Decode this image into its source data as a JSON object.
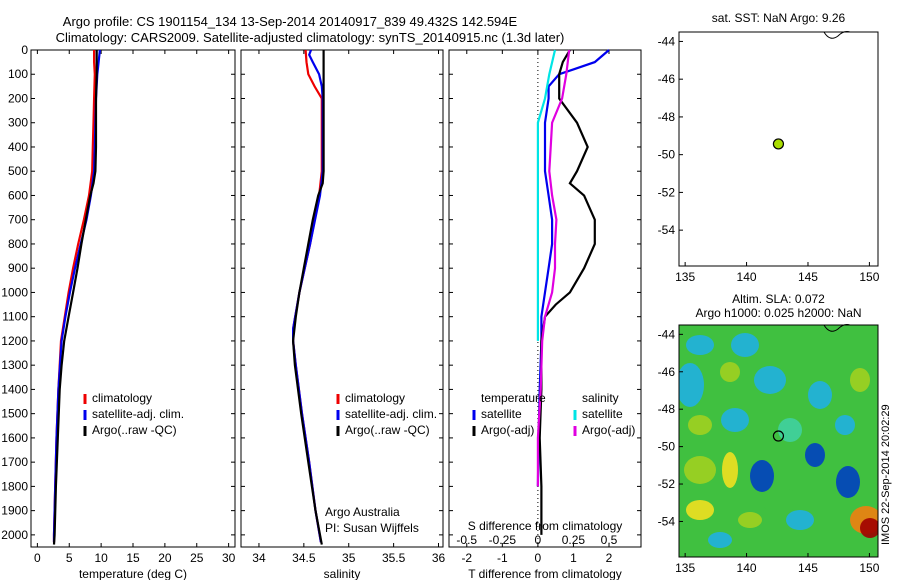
{
  "header": {
    "title_line1": "Argo profile: CS 1901154_134 13-Sep-2014 20140917_839 49.432S 142.594E",
    "title_line2": "Climatology: CARS2009. Satellite-adjusted climatology: synTS_20140915.nc (1.3d later)"
  },
  "colors": {
    "climatology": "#ee0000",
    "satellite": "#0000ee",
    "argo": "#000000",
    "sat_salinity": "#00e5e5",
    "argo_salinity": "#e000e0",
    "marker": "#aadd00"
  },
  "chart_data": [
    {
      "type": "line",
      "xlabel": "temperature (deg C)",
      "xticks": [
        0,
        5,
        10,
        15,
        20,
        25,
        30
      ],
      "xlim": [
        -1,
        31
      ],
      "ylim": [
        0,
        2050
      ],
      "yticks": [
        0,
        100,
        200,
        300,
        400,
        500,
        600,
        700,
        800,
        900,
        1000,
        1100,
        1200,
        1300,
        1400,
        1500,
        1600,
        1700,
        1800,
        1900,
        2000
      ],
      "legend": [
        "climatology",
        "satellite-adj. clim.",
        "Argo(..raw -QC)"
      ],
      "series": [
        {
          "name": "climatology",
          "color": "#ee0000",
          "depth": [
            0,
            50,
            100,
            200,
            300,
            400,
            500,
            600,
            700,
            800,
            900,
            1000,
            1100,
            1200,
            1400,
            1600,
            1800,
            2000,
            2030
          ],
          "values": [
            8.9,
            8.9,
            9.0,
            8.9,
            8.8,
            8.7,
            8.6,
            8.1,
            7.3,
            6.4,
            5.6,
            4.9,
            4.3,
            3.7,
            3.3,
            3.0,
            2.8,
            2.6,
            2.6
          ]
        },
        {
          "name": "satellite-adj. clim.",
          "color": "#0000ee",
          "depth": [
            0,
            50,
            100,
            200,
            300,
            400,
            500,
            600,
            700,
            800,
            900,
            1000,
            1100,
            1200,
            1400,
            1600,
            1800,
            2000,
            2030
          ],
          "values": [
            9.8,
            9.6,
            9.4,
            9.2,
            9.1,
            9.0,
            8.9,
            8.4,
            7.7,
            6.8,
            5.9,
            5.1,
            4.4,
            3.8,
            3.3,
            3.0,
            2.8,
            2.6,
            2.6
          ]
        },
        {
          "name": "Argo(..raw -QC)",
          "color": "#000000",
          "depth": [
            0,
            50,
            100,
            200,
            300,
            400,
            500,
            550,
            600,
            700,
            800,
            900,
            1000,
            1100,
            1200,
            1300,
            1400,
            1600,
            1800,
            2000,
            2040
          ],
          "values": [
            9.3,
            9.3,
            9.3,
            9.2,
            9.2,
            9.2,
            9.1,
            8.8,
            8.3,
            7.6,
            6.9,
            6.3,
            5.6,
            4.9,
            4.2,
            3.8,
            3.5,
            3.2,
            2.9,
            2.7,
            2.6
          ]
        }
      ]
    },
    {
      "type": "line",
      "xlabel": "salinity",
      "xticks": [
        34,
        34.5,
        35,
        35.5,
        36
      ],
      "xlim": [
        33.8,
        36.05
      ],
      "ylim": [
        0,
        2050
      ],
      "legend": [
        "climatology",
        "satellite-adj. clim.",
        "Argo(..raw -QC)"
      ],
      "annotation": [
        "Argo Australia",
        "PI: Susan Wijffels"
      ],
      "series": [
        {
          "name": "climatology",
          "color": "#ee0000",
          "depth": [
            0,
            50,
            100,
            150,
            200,
            300,
            500,
            600,
            800,
            1000,
            1150,
            1200,
            1300,
            1500,
            1700,
            1900,
            2030
          ],
          "values": [
            34.52,
            34.53,
            34.55,
            34.62,
            34.7,
            34.7,
            34.7,
            34.67,
            34.57,
            34.45,
            34.38,
            34.38,
            34.41,
            34.48,
            34.56,
            34.63,
            34.69
          ]
        },
        {
          "name": "satellite-adj. clim.",
          "color": "#0000ee",
          "depth": [
            0,
            20,
            50,
            100,
            150,
            200,
            300,
            500,
            600,
            800,
            1000,
            1150,
            1200,
            1300,
            1500,
            1700,
            1900,
            2030
          ],
          "values": [
            34.58,
            34.56,
            34.6,
            34.67,
            34.7,
            34.71,
            34.71,
            34.71,
            34.68,
            34.57,
            34.45,
            34.38,
            34.38,
            34.41,
            34.48,
            34.56,
            34.63,
            34.69
          ]
        },
        {
          "name": "Argo(..raw -QC)",
          "color": "#000000",
          "depth": [
            0,
            100,
            200,
            300,
            400,
            500,
            550,
            600,
            700,
            800,
            900,
            1000,
            1100,
            1200,
            1300,
            1500,
            1700,
            1900,
            2040
          ],
          "values": [
            34.72,
            34.72,
            34.72,
            34.72,
            34.72,
            34.72,
            34.71,
            34.66,
            34.6,
            34.55,
            34.5,
            34.45,
            34.41,
            34.38,
            34.4,
            34.47,
            34.55,
            34.63,
            34.7
          ]
        }
      ]
    },
    {
      "type": "line",
      "xlabel_top": "S difference from climatology",
      "xlabel": "T difference from climatology",
      "xticks_S": [
        "-0.5",
        "-0.25",
        "0",
        "0.25",
        "0.5"
      ],
      "xticks_T": [
        "-2",
        "-1",
        "0",
        "1",
        "2"
      ],
      "xlim": [
        -2.5,
        2.9
      ],
      "ylim": [
        0,
        2050
      ],
      "legend_temperature": [
        "temperature",
        "satellite",
        "Argo(-adj)"
      ],
      "legend_salinity": [
        "salinity",
        "satellite",
        "Argo(-adj)"
      ],
      "series": [
        {
          "name": "temperature satellite",
          "color": "#0000ee",
          "depth": [
            0,
            50,
            80,
            100,
            150,
            200,
            300,
            400,
            500,
            600,
            700,
            800,
            900,
            1000,
            1100,
            1200,
            1400,
            1600,
            1800
          ],
          "values": [
            2.0,
            1.6,
            1.0,
            0.6,
            0.3,
            0.3,
            0.2,
            0.2,
            0.2,
            0.3,
            0.4,
            0.4,
            0.3,
            0.2,
            0.1,
            0.1,
            0.05,
            0.02,
            0.0
          ]
        },
        {
          "name": "temperature Argo(-adj)",
          "color": "#000000",
          "depth": [
            0,
            50,
            100,
            200,
            300,
            400,
            500,
            550,
            600,
            700,
            800,
            900,
            1000,
            1050,
            1100,
            1200,
            1400,
            1600,
            1800,
            2000
          ],
          "values": [
            0.9,
            0.7,
            0.6,
            0.6,
            1.1,
            1.4,
            1.1,
            0.9,
            1.3,
            1.6,
            1.6,
            1.3,
            0.9,
            0.5,
            0.2,
            0.1,
            0.1,
            0.05,
            0.1,
            0.1
          ]
        },
        {
          "name": "salinity satellite",
          "color": "#00e5e5",
          "depth": [
            0,
            100,
            200,
            300,
            400,
            500,
            600,
            800,
            1000,
            1100,
            1200
          ],
          "values": [
            0.12,
            0.08,
            0.05,
            0.0,
            0.0,
            0.0,
            0.0,
            0.0,
            0.0,
            0.0,
            0.0
          ]
        },
        {
          "name": "salinity Argo(-adj)",
          "color": "#e000e0",
          "depth": [
            0,
            100,
            200,
            300,
            400,
            500,
            600,
            700,
            800,
            900,
            1000,
            1100,
            1200,
            1400,
            1600,
            1800
          ],
          "values": [
            0.22,
            0.2,
            0.17,
            0.1,
            0.09,
            0.08,
            0.1,
            0.13,
            0.12,
            0.12,
            0.1,
            0.05,
            0.03,
            0.02,
            0.0,
            0.0
          ]
        }
      ]
    },
    {
      "type": "scatter",
      "title": "sat. SST: NaN Argo: 9.26",
      "xticks": [
        135,
        140,
        145,
        150
      ],
      "yticks": [
        -44,
        -46,
        -48,
        -50,
        -52,
        -54
      ],
      "xlim": [
        134.5,
        150.7
      ],
      "ylim": [
        -55.9,
        -43.5
      ],
      "points": [
        {
          "x": 142.594,
          "y": -49.432
        }
      ]
    },
    {
      "type": "heatmap",
      "title_line1": "Altim. SLA: 0.072",
      "title_line2": "Argo h1000: 0.025 h2000: NaN",
      "xticks": [
        135,
        140,
        145,
        150
      ],
      "yticks": [
        -44,
        -46,
        -48,
        -50,
        -52,
        -54
      ],
      "xlim": [
        134.5,
        150.7
      ],
      "ylim": [
        -55.9,
        -43.5
      ],
      "points": [
        {
          "x": 142.594,
          "y": -49.432
        }
      ],
      "colormap": [
        "#0040c0",
        "#20b0e0",
        "#40d0a0",
        "#40c040",
        "#a0d020",
        "#f0e020",
        "#f08010",
        "#a00000"
      ]
    }
  ],
  "imos_stamp": "IMOS 22-Sep-2014 20:02:29"
}
